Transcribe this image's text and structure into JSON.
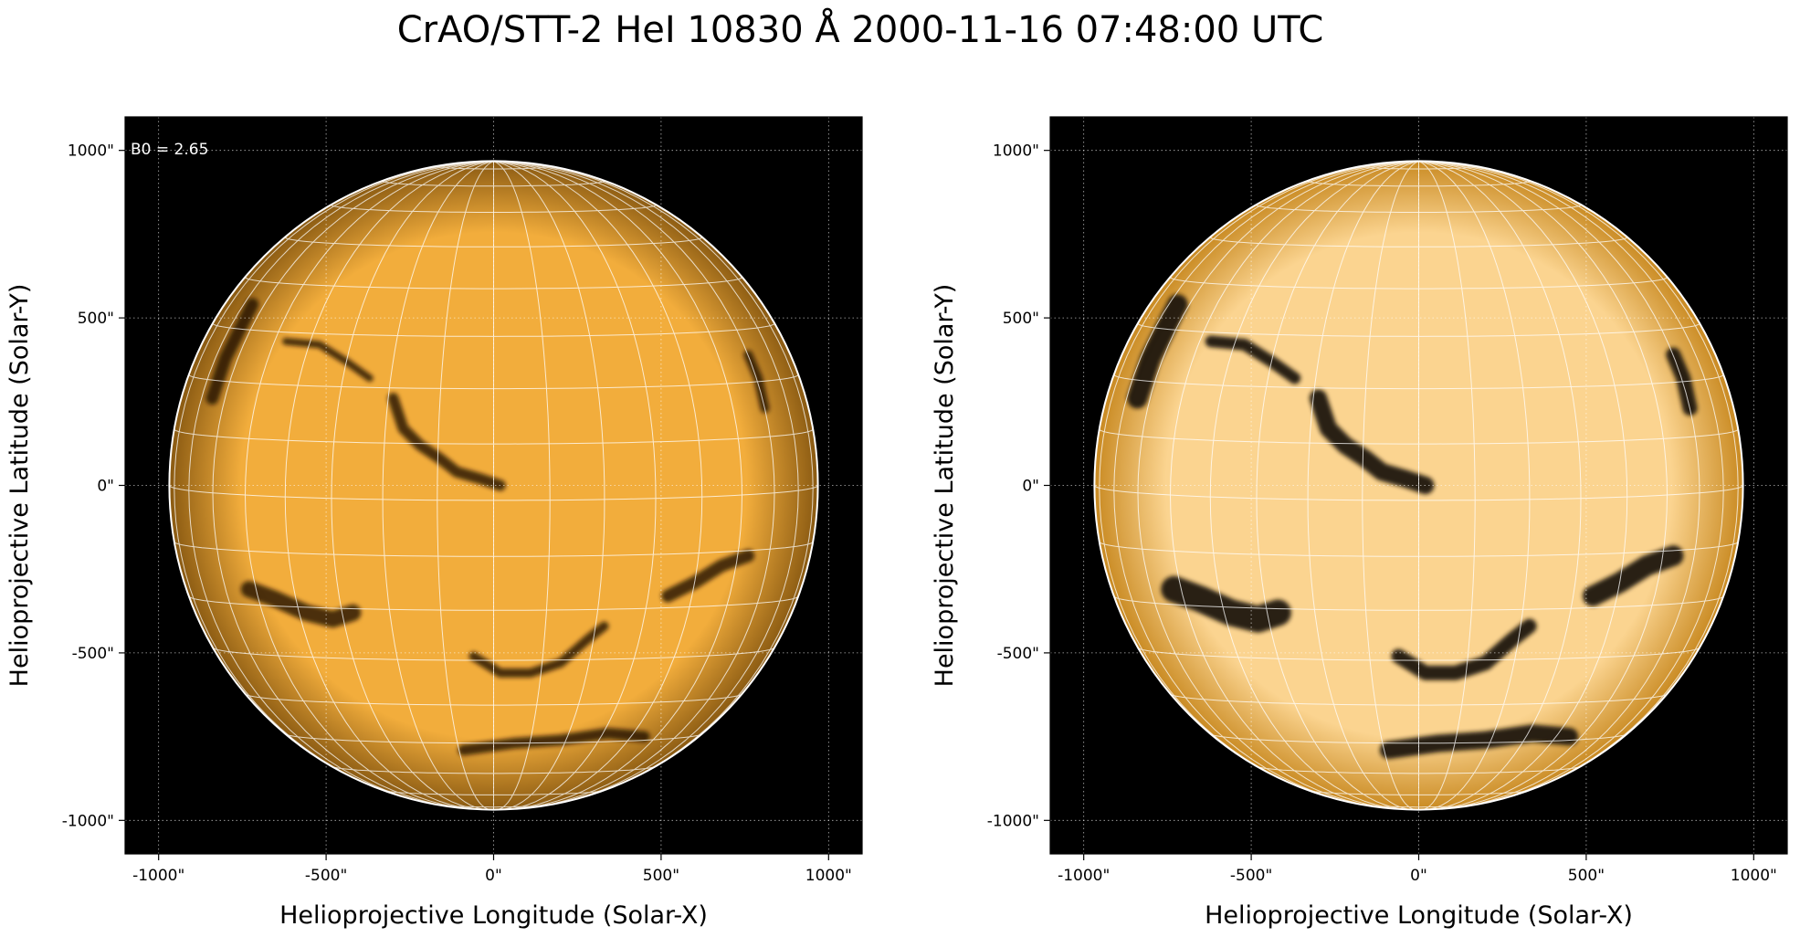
{
  "figure": {
    "title": "CrAO/STT-2 HeI 10830 Å 2000-11-16 07:48:00 UTC"
  },
  "panels": [
    {
      "xlabel": "Helioprojective Longitude (Solar-X)",
      "ylabel": "Helioprojective Latitude (Solar-Y)",
      "annotation": "B0 = 2.65",
      "contrast": "normal",
      "xticks": [
        "-1000\"",
        "-500\"",
        "0\"",
        "500\"",
        "1000\""
      ],
      "yticks": [
        "1000\"",
        "500\"",
        "0\"",
        "-500\"",
        "-1000\""
      ]
    },
    {
      "xlabel": "Helioprojective Longitude (Solar-X)",
      "ylabel": "Helioprojective Latitude (Solar-Y)",
      "annotation": "",
      "contrast": "enhanced",
      "xticks": [
        "-1000\"",
        "-500\"",
        "0\"",
        "500\"",
        "1000\""
      ],
      "yticks": [
        "1000\"",
        "500\"",
        "0\"",
        "-500\"",
        "-1000\""
      ]
    }
  ],
  "axes": {
    "xlim": [
      -1100,
      1100
    ],
    "ylim": [
      -1100,
      1100
    ],
    "tick_values": [
      -1000,
      -500,
      0,
      500,
      1000
    ],
    "grid": true,
    "solar_radius_arcsec": 968
  },
  "colors": {
    "disk_center": "#f2ad3c",
    "disk_limb": "#8a5a12",
    "disk_center_enhanced": "#fbd490",
    "disk_limb_enhanced": "#c98a22",
    "filament": "#1e1408",
    "background": "#000000",
    "grid": "#ffffff"
  },
  "features": [
    {
      "name": "filament-north-center",
      "points": [
        [
          -300,
          260
        ],
        [
          -270,
          170
        ],
        [
          -220,
          120
        ],
        [
          -160,
          80
        ],
        [
          -110,
          40
        ],
        [
          -40,
          20
        ],
        [
          20,
          0
        ]
      ],
      "width": 12
    },
    {
      "name": "filament-south-arc",
      "points": [
        [
          -60,
          -510
        ],
        [
          20,
          -560
        ],
        [
          110,
          -560
        ],
        [
          200,
          -530
        ],
        [
          280,
          -460
        ],
        [
          330,
          -420
        ]
      ],
      "width": 10
    },
    {
      "name": "filament-south-west",
      "points": [
        [
          520,
          -330
        ],
        [
          600,
          -290
        ],
        [
          680,
          -240
        ],
        [
          760,
          -210
        ]
      ],
      "width": 14
    },
    {
      "name": "filament-south-east",
      "points": [
        [
          -730,
          -310
        ],
        [
          -650,
          -340
        ],
        [
          -560,
          -380
        ],
        [
          -480,
          -400
        ],
        [
          -420,
          -380
        ]
      ],
      "width": 18
    },
    {
      "name": "filament-south-pole",
      "points": [
        [
          -90,
          -790
        ],
        [
          60,
          -770
        ],
        [
          200,
          -760
        ],
        [
          340,
          -740
        ],
        [
          450,
          -750
        ]
      ],
      "width": 12
    },
    {
      "name": "filament-east-limb",
      "points": [
        [
          -720,
          540
        ],
        [
          -760,
          460
        ],
        [
          -800,
          380
        ],
        [
          -840,
          260
        ]
      ],
      "width": 14
    },
    {
      "name": "filament-north-west",
      "points": [
        [
          760,
          390
        ],
        [
          790,
          320
        ],
        [
          810,
          230
        ]
      ],
      "width": 10
    },
    {
      "name": "filament-north-east",
      "points": [
        [
          -620,
          430
        ],
        [
          -520,
          420
        ],
        [
          -440,
          370
        ],
        [
          -370,
          320
        ]
      ],
      "width": 8
    }
  ]
}
